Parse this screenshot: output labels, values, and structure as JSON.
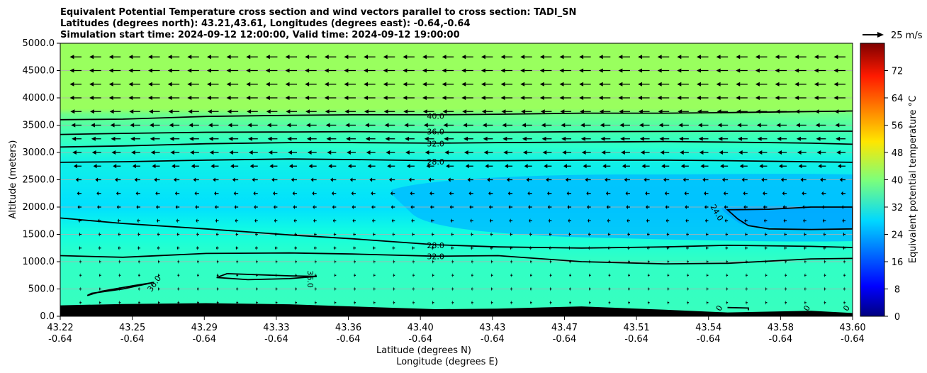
{
  "chart_data": {
    "type": "contour",
    "title_lines": [
      "Equivalent Potential Temperature cross section and wind vectors parallel to cross section: TADI_SN",
      "Latitudes (degrees north): 43.21,43.61, Longitudes (degrees east): -0.64,-0.64",
      "Simulation start time: 2024-09-12 12:00:00, Valid time: 2024-09-12 19:00:00"
    ],
    "xlabel_line1": "Latitude (degrees N)",
    "xlabel_line2": "Longitude (degrees E)",
    "ylabel": "Altitude (meters)",
    "ylim": [
      0,
      5000
    ],
    "yticks": [
      "0.0",
      "500.0",
      "1000.0",
      "1500.0",
      "2000.0",
      "2500.0",
      "3000.0",
      "3500.0",
      "4000.0",
      "4500.0",
      "5000.0"
    ],
    "xticks": [
      {
        "lat": "43.22",
        "lon": "-0.64"
      },
      {
        "lat": "43.25",
        "lon": "-0.64"
      },
      {
        "lat": "43.29",
        "lon": "-0.64"
      },
      {
        "lat": "43.33",
        "lon": "-0.64"
      },
      {
        "lat": "43.36",
        "lon": "-0.64"
      },
      {
        "lat": "43.40",
        "lon": "-0.64"
      },
      {
        "lat": "43.43",
        "lon": "-0.64"
      },
      {
        "lat": "43.47",
        "lon": "-0.64"
      },
      {
        "lat": "43.51",
        "lon": "-0.64"
      },
      {
        "lat": "43.54",
        "lon": "-0.64"
      },
      {
        "lat": "43.58",
        "lon": "-0.64"
      },
      {
        "lat": "43.60",
        "lon": "-0.64"
      }
    ],
    "grid": true,
    "colorbar": {
      "label": "Equivalent potential temperature $^\\circ$C",
      "label_display": "Equivalent potential temperature °C",
      "range": [
        0,
        80
      ],
      "ticks": [
        "0",
        "8",
        "16",
        "24",
        "32",
        "40",
        "48",
        "56",
        "64",
        "72"
      ]
    },
    "quiver_key": "25 m/s",
    "contour_labels": [
      {
        "text": "40.0",
        "lat": 43.4,
        "alt": 3670
      },
      {
        "text": "36.0",
        "lat": 43.4,
        "alt": 3380
      },
      {
        "text": "32.0",
        "lat": 43.4,
        "alt": 3160
      },
      {
        "text": "28.0",
        "lat": 43.4,
        "alt": 2830
      },
      {
        "text": "28.0",
        "lat": 43.4,
        "alt": 1300
      },
      {
        "text": "32.0",
        "lat": 43.4,
        "alt": 1100
      },
      {
        "text": "24.0",
        "lat": 43.535,
        "alt": 1900,
        "rotate": 60
      },
      {
        "text": "36.0",
        "lat": 43.265,
        "alt": 600,
        "rotate": -55
      },
      {
        "text": "36.0",
        "lat": 43.34,
        "alt": 680,
        "rotate": 90
      },
      {
        "text": "0",
        "lat": 43.536,
        "alt": 150,
        "rotate": -60
      },
      {
        "text": "0",
        "lat": 43.578,
        "alt": 150,
        "rotate": -60
      },
      {
        "text": "0",
        "lat": 43.597,
        "alt": 150,
        "rotate": -60
      }
    ],
    "contours": [
      {
        "level": 40,
        "points": [
          [
            43.22,
            3600
          ],
          [
            43.25,
            3610
          ],
          [
            43.29,
            3660
          ],
          [
            43.33,
            3680
          ],
          [
            43.36,
            3690
          ],
          [
            43.4,
            3690
          ],
          [
            43.43,
            3700
          ],
          [
            43.47,
            3720
          ],
          [
            43.51,
            3720
          ],
          [
            43.54,
            3730
          ],
          [
            43.58,
            3750
          ],
          [
            43.6,
            3760
          ]
        ]
      },
      {
        "level": 36,
        "points": [
          [
            43.22,
            3330
          ],
          [
            43.25,
            3350
          ],
          [
            43.29,
            3370
          ],
          [
            43.33,
            3375
          ],
          [
            43.36,
            3380
          ],
          [
            43.4,
            3370
          ],
          [
            43.43,
            3370
          ],
          [
            43.47,
            3380
          ],
          [
            43.51,
            3385
          ],
          [
            43.54,
            3390
          ],
          [
            43.58,
            3390
          ],
          [
            43.6,
            3390
          ]
        ]
      },
      {
        "level": 32,
        "points": [
          [
            43.22,
            3100
          ],
          [
            43.25,
            3120
          ],
          [
            43.29,
            3160
          ],
          [
            43.33,
            3180
          ],
          [
            43.36,
            3180
          ],
          [
            43.4,
            3170
          ],
          [
            43.43,
            3180
          ],
          [
            43.47,
            3190
          ],
          [
            43.51,
            3200
          ],
          [
            43.54,
            3190
          ],
          [
            43.58,
            3170
          ],
          [
            43.6,
            3150
          ]
        ]
      },
      {
        "level": 28,
        "points": [
          [
            43.22,
            2820
          ],
          [
            43.25,
            2830
          ],
          [
            43.29,
            2860
          ],
          [
            43.33,
            2880
          ],
          [
            43.36,
            2870
          ],
          [
            43.4,
            2850
          ],
          [
            43.43,
            2850
          ],
          [
            43.47,
            2860
          ],
          [
            43.51,
            2860
          ],
          [
            43.54,
            2850
          ],
          [
            43.58,
            2830
          ],
          [
            43.6,
            2820
          ]
        ]
      },
      {
        "level": 28,
        "points": [
          [
            43.22,
            1800
          ],
          [
            43.25,
            1700
          ],
          [
            43.29,
            1600
          ],
          [
            43.33,
            1490
          ],
          [
            43.36,
            1420
          ],
          [
            43.4,
            1310
          ],
          [
            43.43,
            1270
          ],
          [
            43.47,
            1250
          ],
          [
            43.51,
            1270
          ],
          [
            43.54,
            1300
          ],
          [
            43.58,
            1280
          ],
          [
            43.6,
            1260
          ]
        ]
      },
      {
        "level": 32,
        "points": [
          [
            43.22,
            1110
          ],
          [
            43.25,
            1080
          ],
          [
            43.29,
            1150
          ],
          [
            43.33,
            1160
          ],
          [
            43.36,
            1140
          ],
          [
            43.4,
            1100
          ],
          [
            43.43,
            1110
          ],
          [
            43.47,
            1000
          ],
          [
            43.51,
            960
          ],
          [
            43.54,
            970
          ],
          [
            43.58,
            1050
          ],
          [
            43.6,
            1060
          ]
        ]
      },
      {
        "level": 24,
        "points": [
          [
            43.56,
            1960
          ],
          [
            43.58,
            2000
          ],
          [
            43.6,
            2000
          ],
          [
            43.6,
            1600
          ],
          [
            43.58,
            1590
          ],
          [
            43.56,
            1600
          ],
          [
            43.55,
            1660
          ],
          [
            43.545,
            1780
          ],
          [
            43.54,
            1950
          ],
          [
            43.56,
            1960
          ]
        ]
      },
      {
        "level": 36,
        "points": [
          [
            43.235,
            420
          ],
          [
            43.25,
            500
          ],
          [
            43.265,
            620
          ],
          [
            43.255,
            560
          ],
          [
            43.24,
            460
          ],
          [
            43.233,
            380
          ],
          [
            43.235,
            420
          ]
        ]
      },
      {
        "level": 36,
        "points": [
          [
            43.3,
            780
          ],
          [
            43.33,
            740
          ],
          [
            43.343,
            730
          ],
          [
            43.33,
            690
          ],
          [
            43.31,
            670
          ],
          [
            43.295,
            710
          ],
          [
            43.3,
            780
          ]
        ]
      },
      {
        "level": 0,
        "points": [
          [
            43.54,
            160
          ],
          [
            43.55,
            150
          ],
          [
            43.55,
            110
          ]
        ]
      }
    ],
    "terrain": [
      [
        43.22,
        200
      ],
      [
        43.25,
        225
      ],
      [
        43.29,
        240
      ],
      [
        43.33,
        220
      ],
      [
        43.36,
        180
      ],
      [
        43.4,
        130
      ],
      [
        43.43,
        140
      ],
      [
        43.47,
        180
      ],
      [
        43.51,
        120
      ],
      [
        43.54,
        70
      ],
      [
        43.58,
        100
      ],
      [
        43.6,
        60
      ]
    ],
    "wind_rows": [
      {
        "alt": 4750,
        "u": -18
      },
      {
        "alt": 4500,
        "u": -18
      },
      {
        "alt": 4250,
        "u": -18
      },
      {
        "alt": 4000,
        "u": -18
      },
      {
        "alt": 3750,
        "u": -17
      },
      {
        "alt": 3500,
        "u": -16
      },
      {
        "alt": 3250,
        "u": -15
      },
      {
        "alt": 3000,
        "u": -14
      },
      {
        "alt": 2750,
        "u": -12
      },
      {
        "alt": 2500,
        "u": -9
      },
      {
        "alt": 2250,
        "u": -7
      },
      {
        "alt": 2000,
        "u": -6
      },
      {
        "alt": 1750,
        "u": -5
      },
      {
        "alt": 1500,
        "u": -4
      },
      {
        "alt": 1250,
        "u": -4
      },
      {
        "alt": 1000,
        "u": -3
      },
      {
        "alt": 750,
        "u": -3
      },
      {
        "alt": 500,
        "u": -3
      },
      {
        "alt": 250,
        "u": -3
      }
    ]
  }
}
